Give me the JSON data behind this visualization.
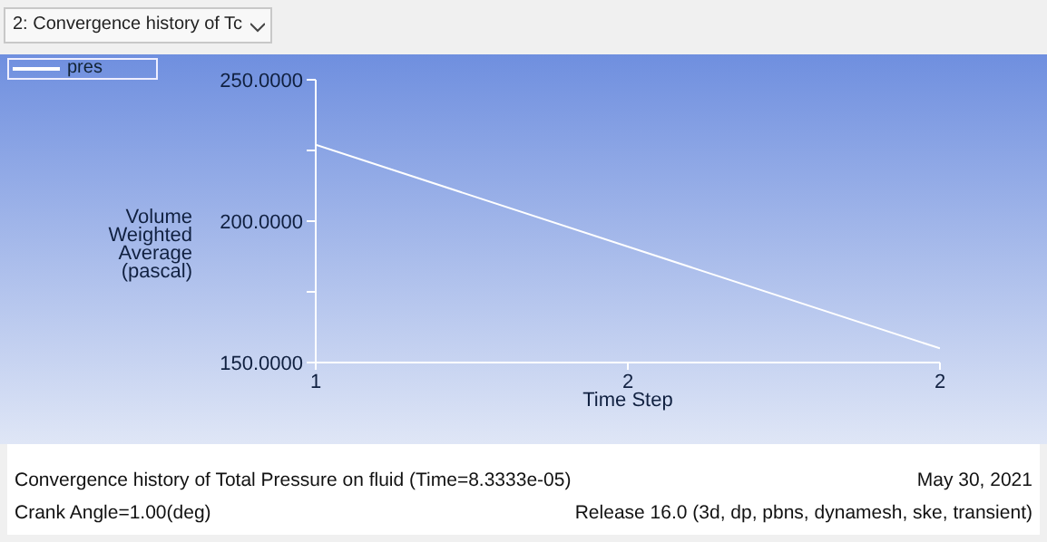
{
  "chart_data": {
    "type": "line",
    "title": "2: Convergence history of Tc",
    "xlabel": "Time Step",
    "ylabel": "Volume Weighted Average (pascal)",
    "x": [
      1,
      2
    ],
    "series": [
      {
        "name": "pres",
        "color": "#ffffff",
        "values": [
          227,
          155
        ]
      }
    ],
    "xlim": [
      1,
      2
    ],
    "xticks": [
      {
        "value": 1,
        "label": "1"
      },
      {
        "value": 1.5,
        "label": "2"
      },
      {
        "value": 2,
        "label": "2"
      }
    ],
    "ylim": [
      150,
      250
    ],
    "yticks": [
      {
        "value": 150,
        "label": "150.0000"
      },
      {
        "value": 175,
        "label": null
      },
      {
        "value": 200,
        "label": "200.0000"
      },
      {
        "value": 225,
        "label": null
      },
      {
        "value": 250,
        "label": "250.0000"
      }
    ],
    "grid": false,
    "legend": "top left",
    "marker": "none",
    "line_style": "solid",
    "annotations": [
      "Convergence history of Total Pressure on fluid  (Time=8.3333e-05)",
      "May 30, 2021",
      "Crank Angle=1.00(deg)",
      "Release 16.0 (3d, dp, pbns, dynamesh, ske, transient)"
    ]
  }
}
